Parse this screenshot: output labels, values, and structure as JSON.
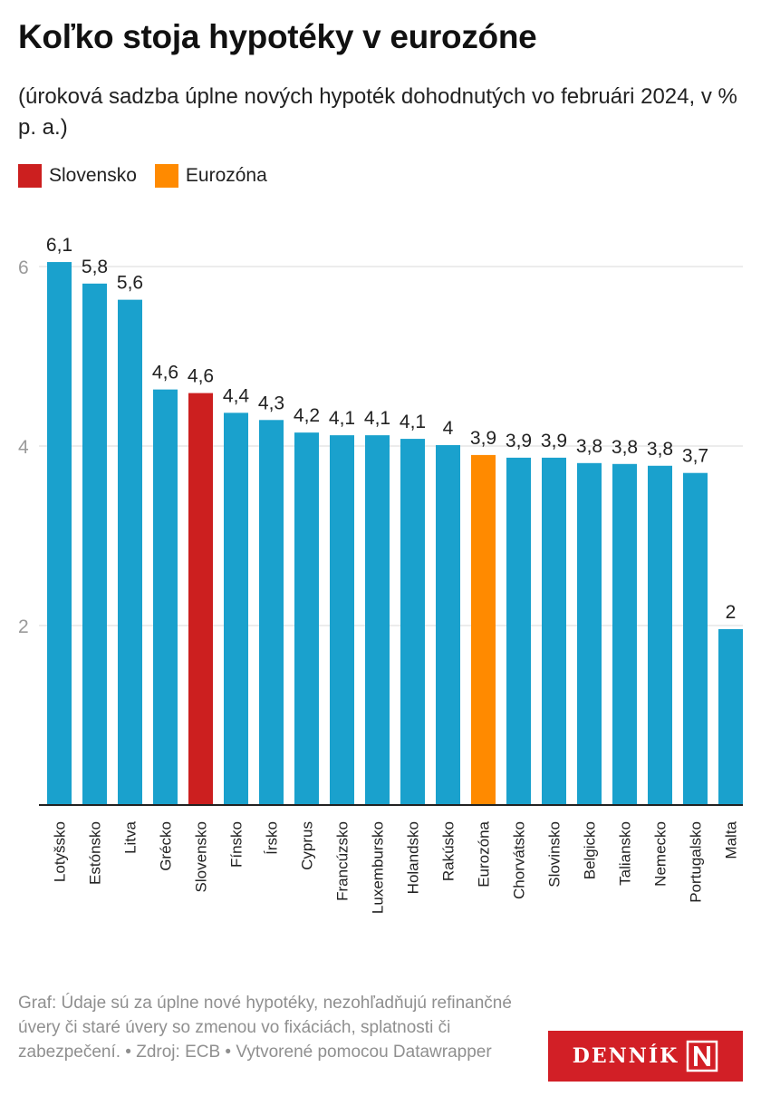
{
  "title": "Koľko stoja hypotéky v eurozóne",
  "subtitle": "(úroková sadzba úplne nových hypoték dohodnutých vo februári 2024, v % p. a.)",
  "legend": [
    {
      "label": "Slovensko",
      "color": "#cc1f1f"
    },
    {
      "label": "Eurozóna",
      "color": "#ff8a00"
    }
  ],
  "colors": {
    "default_bar": "#1aa1cd",
    "slovensko": "#cc1f1f",
    "eurozona": "#ff8a00",
    "grid": "#d9d9d9",
    "axis": "#222222"
  },
  "chart_data": {
    "type": "bar",
    "categories": [
      "Lotyšsko",
      "Estónsko",
      "Litva",
      "Grécko",
      "Slovensko",
      "Fínsko",
      "Írsko",
      "Cyprus",
      "Francúzsko",
      "Luxembursko",
      "Holandsko",
      "Rakúsko",
      "Eurozóna",
      "Chorvátsko",
      "Slovinsko",
      "Belgicko",
      "Taliansko",
      "Nemecko",
      "Portugalsko",
      "Malta"
    ],
    "values": [
      6.05,
      5.81,
      5.63,
      4.63,
      4.59,
      4.37,
      4.29,
      4.15,
      4.12,
      4.12,
      4.08,
      4.01,
      3.9,
      3.87,
      3.87,
      3.81,
      3.8,
      3.78,
      3.7,
      1.96
    ],
    "labels": [
      "6,1",
      "5,8",
      "5,6",
      "4,6",
      "4,6",
      "4,4",
      "4,3",
      "4,2",
      "4,1",
      "4,1",
      "4,1",
      "4",
      "3,9",
      "3,9",
      "3,9",
      "3,8",
      "3,8",
      "3,8",
      "3,7",
      "2"
    ],
    "highlight": {
      "Slovensko": "#cc1f1f",
      "Eurozóna": "#ff8a00"
    },
    "yticks": [
      2,
      4,
      6
    ],
    "ytick_labels": [
      "2",
      "4",
      "6"
    ],
    "ylim": [
      0,
      6.5
    ],
    "grid": true,
    "legend_position": "top-left",
    "xlabel": "",
    "ylabel": ""
  },
  "footer": "Graf: Údaje sú za úplne nové hypotéky, nezohľadňujú refinančné úvery či staré úvery so zmenou vo fixáciách, splatnosti či zabezpečení. • Zdroj: ECB • Vytvorené pomocou Datawrapper",
  "logo_text": "DENNÍK N"
}
